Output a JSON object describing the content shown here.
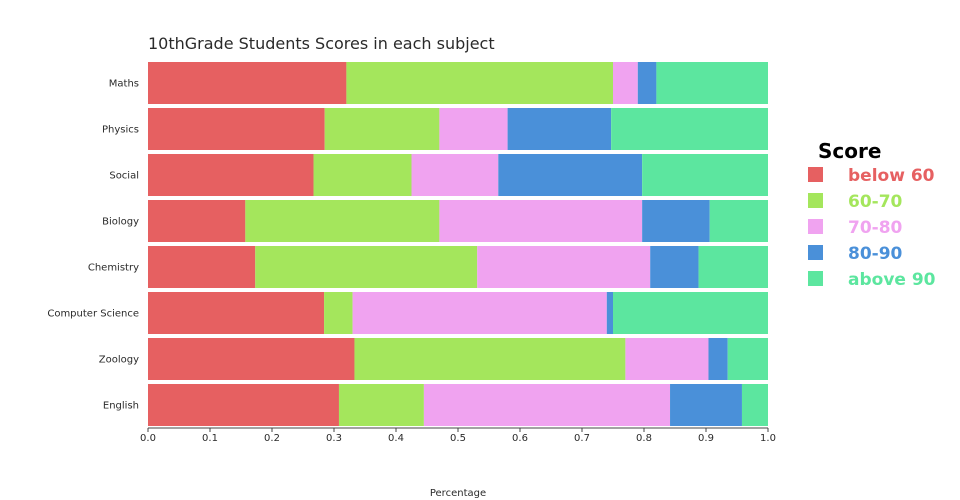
{
  "chart_data": {
    "type": "bar",
    "orientation": "horizontal",
    "stacked": true,
    "title": "10thGrade Students Scores in each subject",
    "xlabel": "Percentage",
    "ylabel": "",
    "xlim": [
      0,
      1
    ],
    "x_ticks": [
      "0.0",
      "0.1",
      "0.2",
      "0.3",
      "0.4",
      "0.5",
      "0.6",
      "0.7",
      "0.8",
      "0.9",
      "1.0"
    ],
    "grid": false,
    "legend_title": "Score",
    "legend_position": "right",
    "categories": [
      "Maths",
      "Physics",
      "Social",
      "Biology",
      "Chemistry",
      "Computer Science",
      "Zoology",
      "English"
    ],
    "series": [
      {
        "name": "below 60",
        "color": "#e66061",
        "values": [
          0.32,
          0.285,
          0.267,
          0.157,
          0.173,
          0.284,
          0.333,
          0.308
        ]
      },
      {
        "name": "60-70",
        "color": "#a4e65c",
        "values": [
          0.43,
          0.185,
          0.158,
          0.313,
          0.358,
          0.046,
          0.437,
          0.137
        ]
      },
      {
        "name": "70-80",
        "color": "#f0a3f0",
        "values": [
          0.04,
          0.11,
          0.14,
          0.327,
          0.279,
          0.41,
          0.134,
          0.397
        ]
      },
      {
        "name": "80-90",
        "color": "#4a90d9",
        "values": [
          0.03,
          0.167,
          0.232,
          0.109,
          0.078,
          0.01,
          0.031,
          0.116
        ]
      },
      {
        "name": "above 90",
        "color": "#5ce69f",
        "values": [
          0.18,
          0.253,
          0.203,
          0.094,
          0.112,
          0.25,
          0.065,
          0.042
        ]
      }
    ]
  }
}
